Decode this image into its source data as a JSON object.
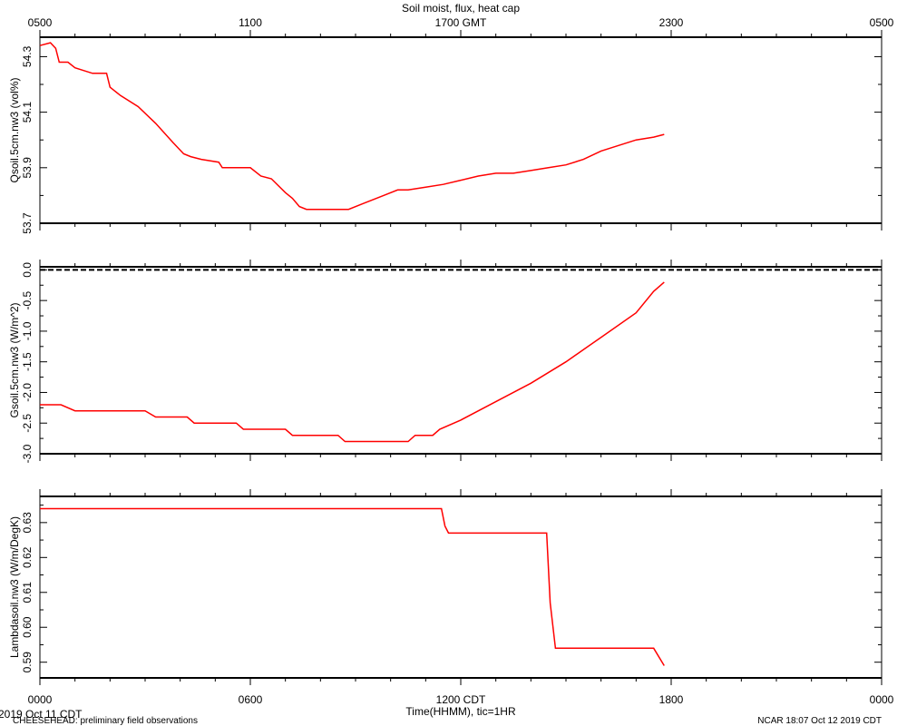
{
  "title": "Soil moist, flux, heat cap",
  "top_axis": {
    "labels": [
      "0500",
      "1100",
      "1700 GMT",
      "2300",
      "0500"
    ]
  },
  "bottom_axis": {
    "labels": [
      "0000",
      "0600",
      "1200 CDT",
      "1800",
      "0000"
    ],
    "xlabel": "Time(HHMM), tic=1HR",
    "date": "2019 Oct 11 CDT"
  },
  "footer": {
    "left": "CHEESEHEAD: preliminary field observations",
    "right": "NCAR 18:07 Oct 12 2019 CDT"
  },
  "colors": {
    "series": "#ff0000",
    "axes": "#000000",
    "zero_line": "#000000"
  },
  "chart_data": [
    {
      "type": "line",
      "ylabel": "Qsoil.5cm.nw3 (vol%)",
      "xlim": [
        0,
        24
      ],
      "ylim": [
        53.7,
        54.37
      ],
      "yticks": [
        53.7,
        53.9,
        54.1,
        54.3
      ],
      "yticklabels": [
        "53.7",
        "53.9",
        "54.1",
        "54.3"
      ],
      "series": [
        {
          "x": [
            0,
            0.3,
            0.45,
            0.55,
            0.8,
            1.0,
            1.5,
            1.9,
            2.0,
            2.3,
            2.8,
            3.3,
            3.8,
            4.1,
            4.3,
            4.6,
            5.1,
            5.2,
            5.4,
            6.0,
            6.3,
            6.6,
            7.0,
            7.2,
            7.4,
            7.6,
            8.0,
            8.5,
            8.8,
            9.2,
            9.8,
            10.2,
            10.5,
            11.0,
            11.5,
            12.0,
            12.5,
            13.0,
            13.5,
            14.0,
            14.5,
            15.0,
            15.5,
            16.0,
            16.5,
            17.0,
            17.5,
            17.8
          ],
          "y": [
            54.34,
            54.35,
            54.33,
            54.28,
            54.28,
            54.26,
            54.24,
            54.24,
            54.19,
            54.16,
            54.12,
            54.06,
            53.99,
            53.95,
            53.94,
            53.93,
            53.92,
            53.9,
            53.9,
            53.9,
            53.87,
            53.86,
            53.81,
            53.79,
            53.76,
            53.75,
            53.75,
            53.75,
            53.75,
            53.77,
            53.8,
            53.82,
            53.82,
            53.83,
            53.84,
            53.855,
            53.87,
            53.88,
            53.88,
            53.89,
            53.9,
            53.91,
            53.93,
            53.96,
            53.98,
            54.0,
            54.01,
            54.02
          ]
        }
      ]
    },
    {
      "type": "line",
      "ylabel": "Gsoil.5cm.nw3 (W/m^2)",
      "xlim": [
        0,
        24
      ],
      "ylim": [
        -3.0,
        0.05
      ],
      "yticks": [
        -3.0,
        -2.5,
        -2.0,
        -1.5,
        -1.0,
        -0.5,
        0.0
      ],
      "yticklabels": [
        "-3.0",
        "-2.5",
        "-2.0",
        "-1.5",
        "-1.0",
        "-0.5",
        "0.0"
      ],
      "zero_line": true,
      "series": [
        {
          "x": [
            0,
            0.6,
            1.0,
            1.2,
            3.0,
            3.3,
            4.2,
            4.4,
            5.6,
            5.8,
            7.0,
            7.2,
            8.5,
            8.7,
            10.5,
            10.7,
            11.2,
            11.4,
            12.0,
            13.0,
            14.0,
            15.0,
            16.0,
            17.0,
            17.5,
            17.8
          ],
          "y": [
            -2.2,
            -2.2,
            -2.3,
            -2.3,
            -2.3,
            -2.4,
            -2.4,
            -2.5,
            -2.5,
            -2.6,
            -2.6,
            -2.7,
            -2.7,
            -2.8,
            -2.8,
            -2.7,
            -2.7,
            -2.6,
            -2.45,
            -2.15,
            -1.85,
            -1.5,
            -1.1,
            -0.7,
            -0.35,
            -0.2
          ]
        }
      ]
    },
    {
      "type": "line",
      "ylabel": "Lambdasoil.nw3 (W/m/DegK)",
      "xlim": [
        0,
        24
      ],
      "ylim": [
        0.5855,
        0.6375
      ],
      "yticks": [
        0.59,
        0.6,
        0.61,
        0.62,
        0.63
      ],
      "yticklabels": [
        "0.59",
        "0.60",
        "0.61",
        "0.62",
        "0.63"
      ],
      "series": [
        {
          "x": [
            0,
            11.45,
            11.55,
            11.65,
            14.45,
            14.55,
            14.7,
            17.5,
            17.8
          ],
          "y": [
            0.634,
            0.634,
            0.629,
            0.627,
            0.627,
            0.607,
            0.594,
            0.594,
            0.589
          ]
        }
      ]
    }
  ]
}
